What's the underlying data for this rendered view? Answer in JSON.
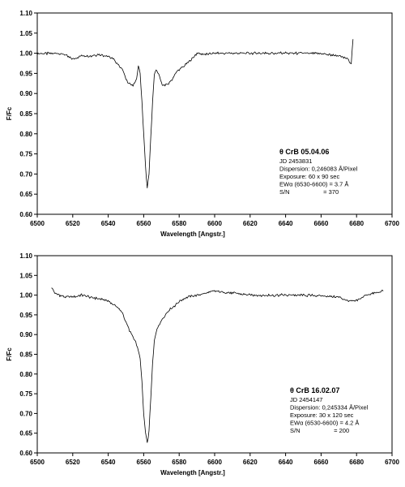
{
  "chart_data": [
    {
      "type": "line",
      "xlabel": "Wavelength [Angstr.]",
      "ylabel": "F/Fc",
      "xlim": [
        6500,
        6700
      ],
      "ylim": [
        0.6,
        1.1
      ],
      "x_ticks": [
        "6500",
        "6520",
        "6540",
        "6560",
        "6580",
        "6600",
        "6620",
        "6640",
        "6660",
        "6680",
        "6700"
      ],
      "y_ticks": [
        "0.60",
        "0.65",
        "0.70",
        "0.75",
        "0.80",
        "0.85",
        "0.90",
        "0.95",
        "1.00",
        "1.05",
        "1.10"
      ],
      "grid": false,
      "annotation": {
        "title": "θ CrB 05.04.06",
        "lines": [
          "JD 2453831",
          "Dispersion: 0,246083 Å/Pixel",
          "Exposure: 60 x 90 sec",
          "EWα (6530-6600) = 3.7 Å",
          "S/N                    = 370"
        ]
      },
      "x": [
        6500,
        6505,
        6510,
        6515,
        6518,
        6520,
        6525,
        6530,
        6535,
        6540,
        6543,
        6545,
        6548,
        6550,
        6552,
        6554,
        6556,
        6557,
        6558,
        6559,
        6560,
        6561,
        6562,
        6563,
        6564,
        6565,
        6566,
        6567,
        6568,
        6569,
        6570,
        6572,
        6574,
        6576,
        6578,
        6580,
        6585,
        6590,
        6595,
        6600,
        6610,
        6620,
        6630,
        6640,
        6650,
        6660,
        6670,
        6675,
        6677,
        6677.5,
        6678
      ],
      "y": [
        1.0,
        0.999,
        1.0,
        0.998,
        0.99,
        0.985,
        0.995,
        0.993,
        0.997,
        0.992,
        0.985,
        0.975,
        0.96,
        0.935,
        0.925,
        0.92,
        0.935,
        0.97,
        0.95,
        0.88,
        0.8,
        0.72,
        0.665,
        0.7,
        0.79,
        0.88,
        0.945,
        0.96,
        0.95,
        0.94,
        0.925,
        0.92,
        0.925,
        0.935,
        0.95,
        0.96,
        0.975,
        1.0,
        0.997,
        1.0,
        1.0,
        1.0,
        1.0,
        1.0,
        1.0,
        0.999,
        0.993,
        0.985,
        0.975,
        1.01,
        1.035
      ]
    },
    {
      "type": "line",
      "xlabel": "Wavelength [Angstr.]",
      "ylabel": "F/Fc",
      "xlim": [
        6500,
        6700
      ],
      "ylim": [
        0.6,
        1.1
      ],
      "x_ticks": [
        "6500",
        "6520",
        "6540",
        "6560",
        "6580",
        "6600",
        "6620",
        "6640",
        "6660",
        "6680",
        "6700"
      ],
      "y_ticks": [
        "0.60",
        "0.65",
        "0.70",
        "0.75",
        "0.80",
        "0.85",
        "0.90",
        "0.95",
        "1.00",
        "1.05",
        "1.10"
      ],
      "grid": false,
      "annotation": {
        "title": "θ CrB 16.02.07",
        "lines": [
          "JD 2454147",
          "Dispersion: 0,245334 Å/Pixel",
          "Exposure: 30 x 120 sec",
          "EWα (6530-6600) = 4.2 Å",
          "S/N                    = 200"
        ]
      },
      "x": [
        6508,
        6510,
        6515,
        6520,
        6525,
        6530,
        6535,
        6540,
        6545,
        6548,
        6550,
        6552,
        6554,
        6556,
        6558,
        6559,
        6560,
        6561,
        6562,
        6563,
        6564,
        6565,
        6566,
        6567,
        6568,
        6570,
        6572,
        6575,
        6578,
        6580,
        6585,
        6590,
        6600,
        6610,
        6620,
        6630,
        6640,
        6650,
        6660,
        6670,
        6675,
        6680,
        6685,
        6690,
        6695
      ],
      "y": [
        1.02,
        1.005,
        0.995,
        0.995,
        1.0,
        0.995,
        0.99,
        0.985,
        0.97,
        0.955,
        0.93,
        0.91,
        0.895,
        0.875,
        0.84,
        0.78,
        0.7,
        0.65,
        0.625,
        0.655,
        0.74,
        0.825,
        0.885,
        0.905,
        0.92,
        0.935,
        0.95,
        0.965,
        0.975,
        0.985,
        0.995,
        1.0,
        1.01,
        1.005,
        1.0,
        1.0,
        1.0,
        1.0,
        0.998,
        0.995,
        0.985,
        0.985,
        1.0,
        1.005,
        1.01
      ]
    }
  ]
}
